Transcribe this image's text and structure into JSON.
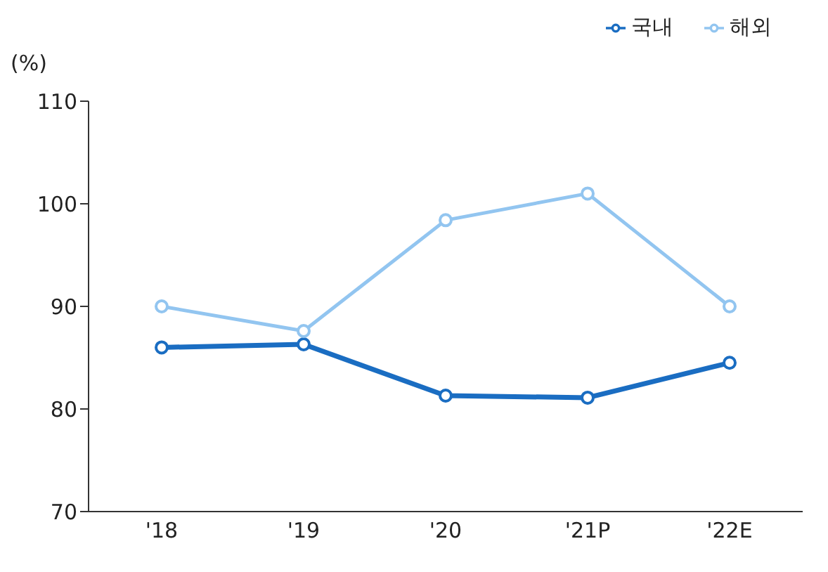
{
  "chart_data": {
    "type": "line",
    "ylabel": "(%)",
    "categories": [
      "'18",
      "'19",
      "'20",
      "'21P",
      "'22E"
    ],
    "series": [
      {
        "name": "국내",
        "color": "#1a6dc2",
        "values": [
          86,
          86.3,
          81.3,
          81.1,
          84.5
        ]
      },
      {
        "name": "해외",
        "color": "#92c5f0",
        "values": [
          90,
          87.6,
          98.4,
          101,
          90
        ]
      }
    ],
    "ylim": [
      70,
      110
    ],
    "yticks": [
      70,
      80,
      90,
      100,
      110
    ],
    "grid": false,
    "legend": "top right",
    "marker": "circle",
    "line_style": "solid"
  }
}
